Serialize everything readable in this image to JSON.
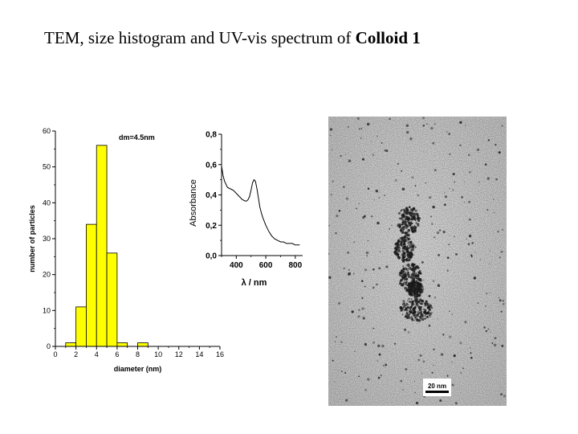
{
  "title": {
    "prefix": "TEM, size histogram and UV-vis spectrum of ",
    "emphasis": "Colloid 1"
  },
  "chart_data": [
    {
      "type": "bar",
      "bar_color": "#ffff00",
      "annotation": "dm=4.5nm",
      "xlabel": "diameter (nm)",
      "ylabel": "number of particles",
      "xlim": [
        0,
        16
      ],
      "ylim": [
        0,
        60
      ],
      "xticks": [
        "0",
        "2",
        "4",
        "6",
        "8",
        "10",
        "12",
        "14",
        "16"
      ],
      "yticks": [
        "0",
        "10",
        "20",
        "30",
        "40",
        "50",
        "60"
      ],
      "bin_width": 1,
      "bins": [
        1.5,
        2.5,
        3.5,
        4.5,
        5.5,
        6.5,
        8.5
      ],
      "values": [
        1,
        11,
        34,
        56,
        26,
        1,
        1
      ]
    },
    {
      "type": "line",
      "xlabel": "λ / nm",
      "ylabel": "Absorbance",
      "xlim": [
        300,
        850
      ],
      "ylim": [
        0,
        0.8
      ],
      "xticks": [
        "400",
        "600",
        "800"
      ],
      "yticks": [
        "0,0",
        "0,2",
        "0,4",
        "0,6",
        "0,8"
      ],
      "x": [
        300,
        310,
        320,
        340,
        360,
        380,
        400,
        420,
        440,
        460,
        470,
        480,
        490,
        500,
        510,
        520,
        530,
        540,
        550,
        560,
        570,
        580,
        600,
        620,
        640,
        660,
        680,
        700,
        720,
        740,
        760,
        780,
        800,
        820,
        830
      ],
      "y": [
        0.59,
        0.53,
        0.49,
        0.45,
        0.44,
        0.43,
        0.41,
        0.39,
        0.37,
        0.36,
        0.36,
        0.37,
        0.39,
        0.43,
        0.48,
        0.5,
        0.49,
        0.44,
        0.38,
        0.32,
        0.28,
        0.25,
        0.2,
        0.16,
        0.13,
        0.11,
        0.1,
        0.09,
        0.09,
        0.08,
        0.08,
        0.08,
        0.07,
        0.07,
        0.07
      ]
    }
  ],
  "tem_image": {
    "scale_bar_label": "20 nm"
  }
}
